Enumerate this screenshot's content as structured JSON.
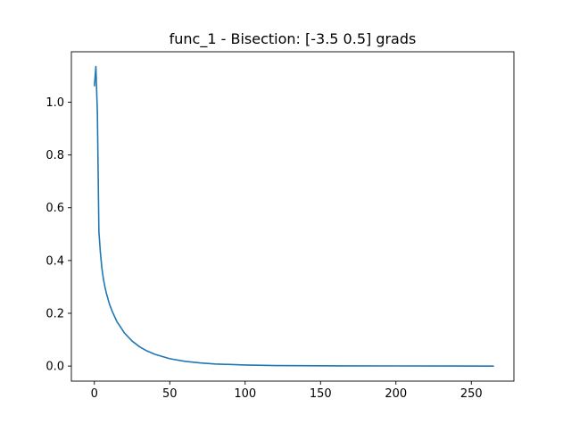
{
  "chart_data": {
    "type": "line",
    "title": "func_1 - Bisection: [-3.5  0.5] grads",
    "xlabel": "",
    "ylabel": "",
    "xlim": [
      -15.25,
      278.25
    ],
    "ylim": [
      -0.057,
      1.191
    ],
    "grid": false,
    "x_ticks": [
      0,
      50,
      100,
      150,
      200,
      250
    ],
    "y_ticks": [
      0.0,
      0.2,
      0.4,
      0.6,
      0.8,
      1.0
    ],
    "x_tick_labels": [
      "0",
      "50",
      "100",
      "150",
      "200",
      "250"
    ],
    "y_tick_labels": [
      "0.0",
      "0.2",
      "0.4",
      "0.6",
      "0.8",
      "1.0"
    ],
    "series": [
      {
        "color": "#1f77b4",
        "x": [
          0,
          1,
          2,
          3,
          4,
          5,
          6,
          7,
          8,
          10,
          12,
          15,
          20,
          25,
          30,
          35,
          40,
          50,
          60,
          70,
          80,
          100,
          120,
          150,
          200,
          265
        ],
        "y": [
          1.06,
          1.135,
          0.96,
          0.51,
          0.43,
          0.37,
          0.33,
          0.3,
          0.275,
          0.235,
          0.205,
          0.168,
          0.125,
          0.095,
          0.073,
          0.057,
          0.045,
          0.028,
          0.018,
          0.012,
          0.008,
          0.004,
          0.002,
          0.001,
          0.0005,
          0.0
        ]
      }
    ]
  }
}
